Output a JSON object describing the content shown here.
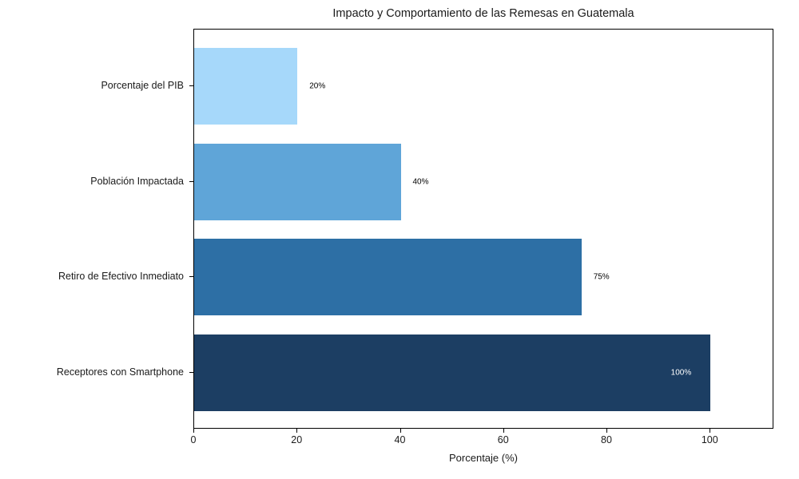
{
  "title": "Impacto y Comportamiento de las Remesas en Guatemala",
  "chart_data": {
    "type": "bar",
    "orientation": "horizontal",
    "title": "Impacto y Comportamiento de las Remesas en Guatemala",
    "xlabel": "Porcentaje (%)",
    "ylabel": "",
    "categories": [
      "Porcentaje del PIB",
      "Población Impactada",
      "Retiro de Efectivo Inmediato",
      "Receptores con Smartphone"
    ],
    "values": [
      20,
      40,
      75,
      100
    ],
    "value_labels": [
      "20%",
      "40%",
      "75%",
      "100%"
    ],
    "bar_colors": [
      "#A6D8FA",
      "#5FA5D8",
      "#2D6FA5",
      "#1C3E63"
    ],
    "value_label_colors": [
      "#000000",
      "#000000",
      "#000000",
      "#ffffff"
    ],
    "value_label_placement": [
      "outside",
      "outside",
      "outside",
      "inside"
    ],
    "x_ticks": [
      0,
      20,
      40,
      60,
      80,
      100
    ],
    "xlim": [
      0,
      112.3
    ],
    "grid": false,
    "legend": "none",
    "background": "#ffffff",
    "spine_color": "#000000"
  }
}
